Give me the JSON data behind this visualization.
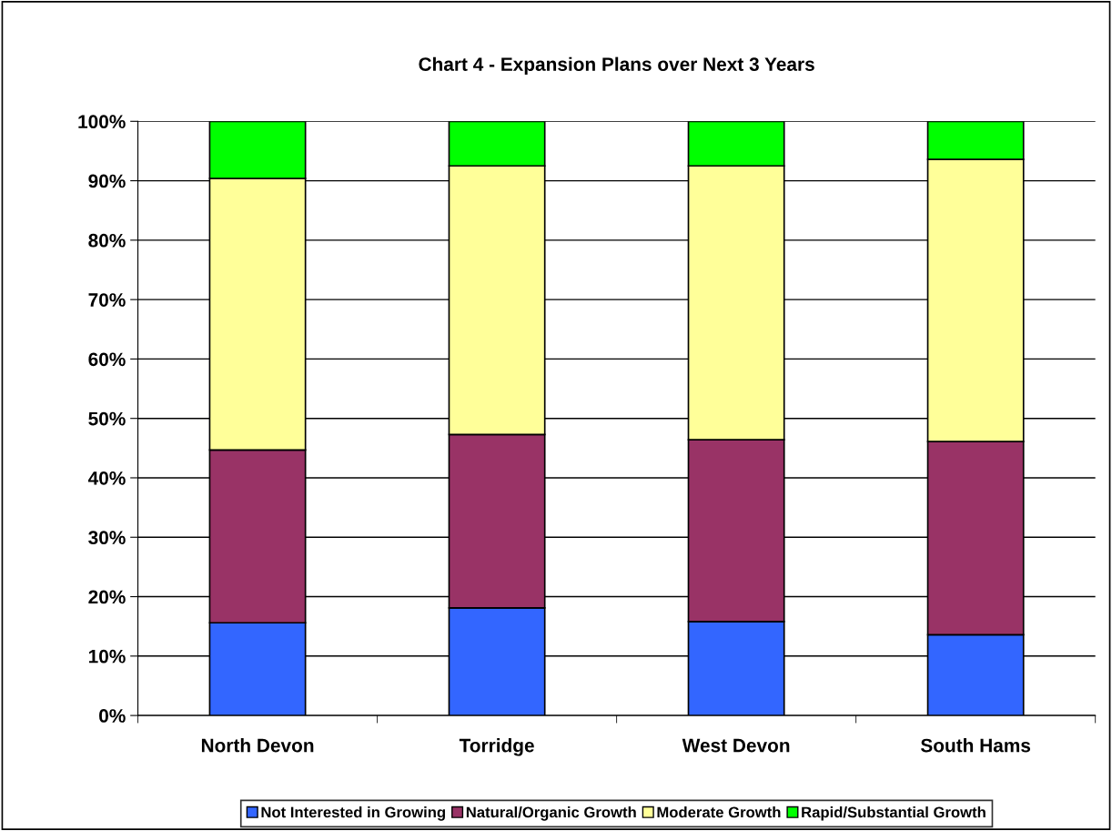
{
  "chart_data": {
    "type": "bar",
    "stacked": true,
    "title": "Chart 4 - Expansion Plans over Next 3 Years",
    "categories": [
      "North Devon",
      "Torridge",
      "West Devon",
      "South Hams"
    ],
    "series": [
      {
        "name": "Not Interested in Growing",
        "color": "#3366ff",
        "values": [
          15.6,
          18.1,
          15.8,
          13.6
        ]
      },
      {
        "name": "Natural/Organic Growth",
        "color": "#993366",
        "values": [
          29.1,
          29.2,
          30.6,
          32.5
        ]
      },
      {
        "name": "Moderate Growth",
        "color": "#ffff99",
        "values": [
          45.7,
          45.2,
          46.1,
          47.5
        ]
      },
      {
        "name": "Rapid/Substantial Growth",
        "color": "#00ff00",
        "values": [
          9.6,
          7.5,
          7.5,
          6.4
        ]
      }
    ],
    "ylim": [
      0,
      100
    ],
    "yticks": [
      {
        "value": 0,
        "label": "0%"
      },
      {
        "value": 10,
        "label": "10%"
      },
      {
        "value": 20,
        "label": "20%"
      },
      {
        "value": 30,
        "label": "30%"
      },
      {
        "value": 40,
        "label": "40%"
      },
      {
        "value": 50,
        "label": "50%"
      },
      {
        "value": 60,
        "label": "60%"
      },
      {
        "value": 70,
        "label": "70%"
      },
      {
        "value": 80,
        "label": "80%"
      },
      {
        "value": 90,
        "label": "90%"
      },
      {
        "value": 100,
        "label": "100%"
      }
    ],
    "grid": "y",
    "legend": "bottom"
  }
}
